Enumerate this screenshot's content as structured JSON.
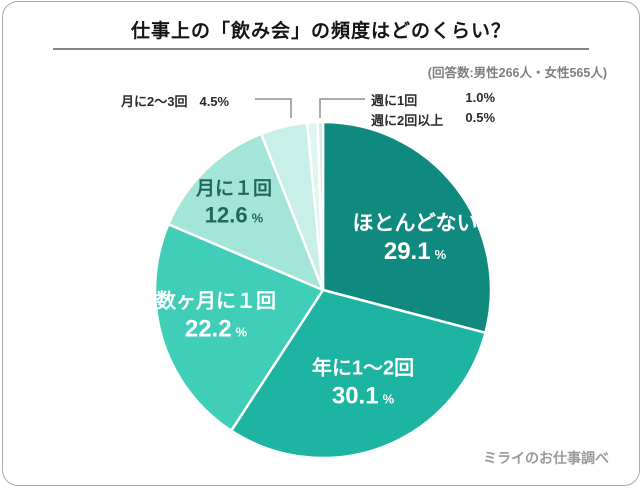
{
  "header": {
    "title": "仕事上の「飲み会」の頻度はどのくらい？",
    "respondents_note": "(回答数:男性266人・女性565人)"
  },
  "footer": {
    "credit": "ミライのお仕事調べ"
  },
  "chart_data": {
    "type": "pie",
    "title": "仕事上の「飲み会」の頻度はどのくらい？",
    "unit": "%",
    "start_angle": "12-oclock, clockwise",
    "legend_position": "none",
    "slices": [
      {
        "label": "ほとんどない",
        "value": 29.1,
        "value_label": "29.1",
        "color": "#108a7e"
      },
      {
        "label": "年に1〜2回",
        "value": 30.1,
        "value_label": "30.1",
        "color": "#1db4a2"
      },
      {
        "label": "数ヶ月に１回",
        "value": 22.2,
        "value_label": "22.2",
        "color": "#40ceb9"
      },
      {
        "label": "月に１回",
        "value": 12.6,
        "value_label": "12.6",
        "color": "#a3e5d8"
      },
      {
        "label": "月に2〜3回",
        "value": 4.5,
        "value_label": "4.5",
        "color": "#c9f0e8"
      },
      {
        "label": "週に1回",
        "value": 1.0,
        "value_label": "1.0",
        "color": "#dff5ef"
      },
      {
        "label": "週に2回以上",
        "value": 0.5,
        "value_label": "0.5",
        "color": "#dce4e1"
      }
    ]
  }
}
